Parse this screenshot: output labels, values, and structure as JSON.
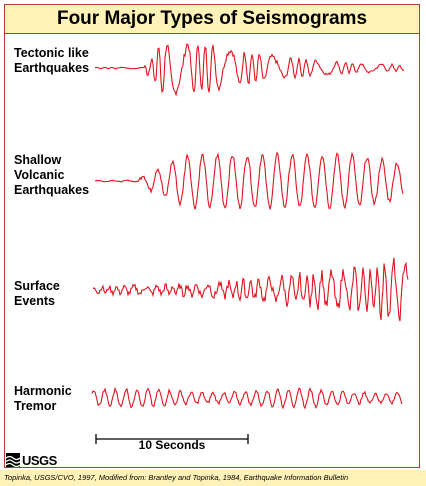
{
  "title": "Four Major Types of Seismograms",
  "traces": [
    {
      "label": "Tectonic like\nEarthquakes"
    },
    {
      "label": "Shallow\nVolcanic\nEarthquakes"
    },
    {
      "label": "Surface\nEvents"
    },
    {
      "label": "Harmonic\nTremor"
    }
  ],
  "scale_bar": {
    "label": "10 Seconds"
  },
  "logo": {
    "text": "USGS"
  },
  "credit": "Topinka, USGS/CVO, 1997, Modified from: Brantley and Topinka, 1984, Earthquake Information Bulletin",
  "colors": {
    "trace": "#e0141e",
    "panel": "#fff2b8",
    "border": "#c0392b"
  }
}
